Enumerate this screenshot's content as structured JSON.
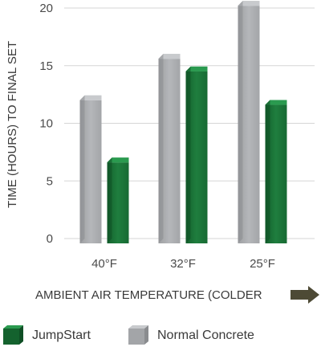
{
  "chart_data": {
    "type": "bar",
    "categories": [
      "40°F",
      "32°F",
      "25°F"
    ],
    "series": [
      {
        "name": "Normal Concrete",
        "values": [
          12,
          15.6,
          20.2
        ],
        "color": "#a7a9ac"
      },
      {
        "name": "JumpStart",
        "values": [
          6.6,
          14.5,
          11.6
        ],
        "color": "#1e7a3c"
      }
    ],
    "yticks": [
      0,
      5,
      10,
      15,
      20
    ],
    "ylim": [
      0,
      20
    ],
    "ylabel": "TIME (HOURS) TO FINAL SET",
    "xlabel": "AMBIENT AIR TEMPERATURE (COLDER",
    "xlabel_arrow_color": "#4d4a35",
    "grid": true,
    "legend_position": "bottom"
  }
}
